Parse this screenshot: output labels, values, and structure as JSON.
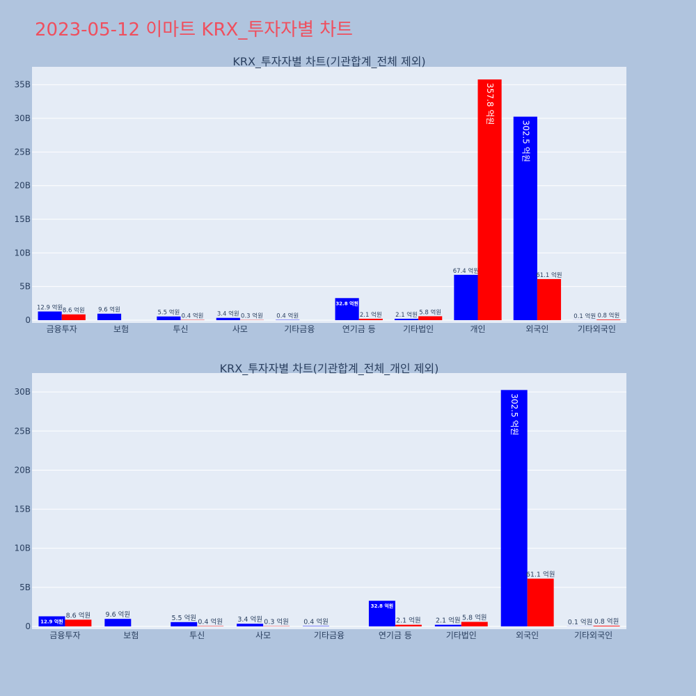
{
  "page_title": "2023-05-12 이마트 KRX_투자자별 차트",
  "colors": {
    "buy": "#0000ff",
    "sell": "#ff0000",
    "plot_bg": "#e5ecf6",
    "page_bg": "#b0c4de",
    "title": "#ef4f5e"
  },
  "chart_data": [
    {
      "type": "bar",
      "title": "KRX_투자자별 차트(기관합계_전체 제외)",
      "categories": [
        "금융투자",
        "보험",
        "투신",
        "사모",
        "기타금융",
        "연기금 등",
        "기타법인",
        "개인",
        "외국인",
        "기타외국인"
      ],
      "series": [
        {
          "color": "#0000ff",
          "values": [
            1.29,
            0.96,
            0.55,
            0.34,
            0.04,
            3.28,
            0.21,
            6.74,
            30.25,
            0.01
          ],
          "labels": [
            "12.9 억원",
            "9.6 억원",
            "5.5 억원",
            "3.4 억원",
            "0.4 억원",
            "32.8 억원",
            "2.1 억원",
            "67.4 억원",
            "302.5 억원",
            "0.1 억원"
          ]
        },
        {
          "color": "#ff0000",
          "values": [
            0.86,
            0,
            0.04,
            0.03,
            0,
            0.21,
            0.58,
            35.78,
            6.11,
            0.08
          ],
          "labels": [
            "8.6 억원",
            "",
            "0.4 억원",
            "0.3 억원",
            "",
            "2.1 억원",
            "5.8 억원",
            "357.8 억원",
            "61.1 억원",
            "0.8 억원"
          ]
        }
      ],
      "yticks": [
        0,
        5,
        10,
        15,
        20,
        25,
        30,
        35
      ],
      "ytick_labels": [
        "0",
        "5B",
        "10B",
        "15B",
        "20B",
        "25B",
        "30B",
        "35B"
      ],
      "ylim": [
        0,
        37.66
      ],
      "grid": true
    },
    {
      "type": "bar",
      "title": "KRX_투자자별 차트(기관합계_전체_개인 제외)",
      "categories": [
        "금융투자",
        "보험",
        "투신",
        "사모",
        "기타금융",
        "연기금 등",
        "기타법인",
        "외국인",
        "기타외국인"
      ],
      "series": [
        {
          "color": "#0000ff",
          "values": [
            1.29,
            0.96,
            0.55,
            0.34,
            0.04,
            3.28,
            0.21,
            30.25,
            0.01
          ],
          "labels": [
            "12.9 억원",
            "9.6 억원",
            "5.5 억원",
            "3.4 억원",
            "0.4 억원",
            "32.8 억원",
            "2.1 억원",
            "302.5 억원",
            "0.1 억원"
          ]
        },
        {
          "color": "#ff0000",
          "values": [
            0.86,
            0,
            0.04,
            0.03,
            0,
            0.21,
            0.58,
            6.11,
            0.08
          ],
          "labels": [
            "8.6 억원",
            "",
            "0.4 억원",
            "0.3 억원",
            "",
            "2.1 억원",
            "5.8 억원",
            "61.1 억원",
            "0.8 억원"
          ]
        }
      ],
      "yticks": [
        0,
        5,
        10,
        15,
        20,
        25,
        30
      ],
      "ytick_labels": [
        "0",
        "5B",
        "10B",
        "15B",
        "20B",
        "25B",
        "30B"
      ],
      "ylim": [
        0,
        32.42
      ],
      "grid": true
    }
  ]
}
